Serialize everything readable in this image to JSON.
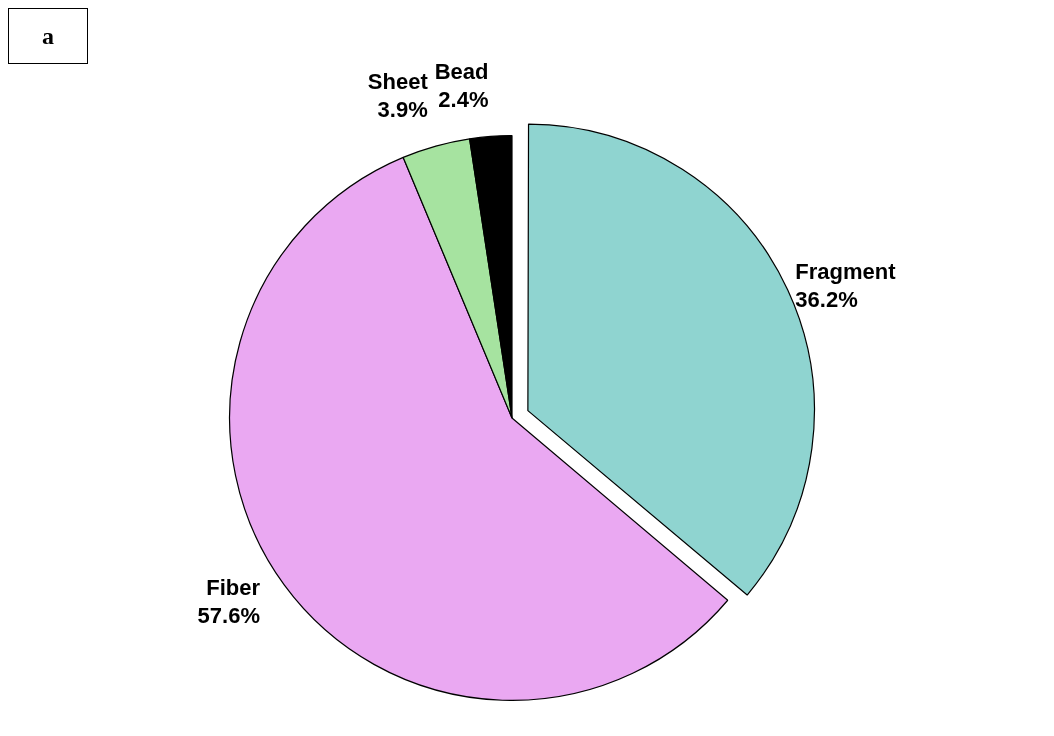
{
  "chart_data": {
    "type": "pie",
    "categories": [
      "Fragment",
      "Fiber",
      "Sheet",
      "Bead"
    ],
    "values": [
      36.2,
      57.6,
      3.9,
      2.4
    ],
    "value_labels": [
      "36.2%",
      "57.6%",
      "3.9%",
      "2.4%"
    ],
    "colors": [
      "#8fd4d0",
      "#eaa8f2",
      "#a6e3a0",
      "#000000"
    ],
    "legend": false,
    "annotations": [
      "a"
    ]
  }
}
